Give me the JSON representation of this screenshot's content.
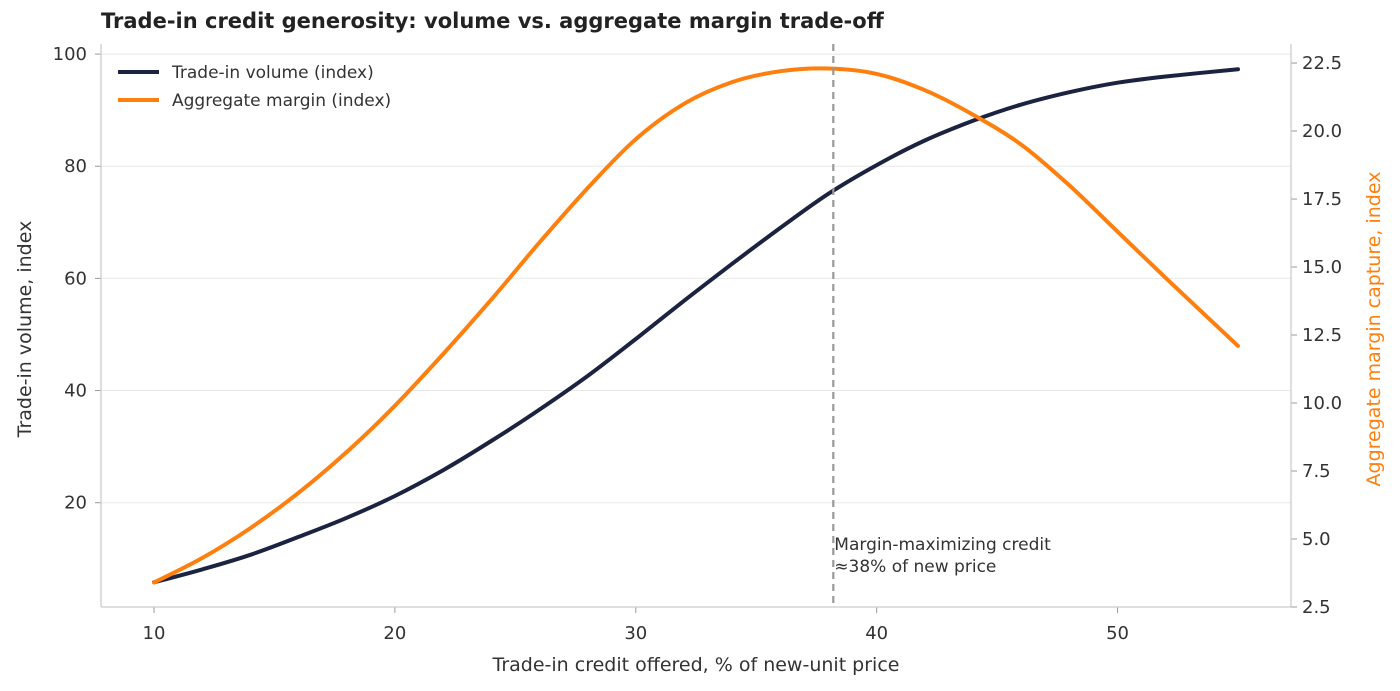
{
  "chart_data": {
    "type": "line",
    "title": "Trade-in credit generosity: volume vs. aggregate margin trade-off",
    "xlabel": "Trade-in credit offered, % of new-unit price",
    "ylabel": "Trade-in volume, index",
    "y2label": "Aggregate margin capture, index",
    "xlim": [
      7.8,
      57.2
    ],
    "ylim": [
      1.4,
      101.8
    ],
    "y2lim": [
      2.5,
      23.2
    ],
    "x_ticks": [
      10,
      20,
      30,
      40,
      50
    ],
    "y_ticks": [
      20,
      40,
      60,
      80,
      100
    ],
    "y2_ticks": [
      "2.5",
      "5.0",
      "7.5",
      "10.0",
      "12.5",
      "15.0",
      "17.5",
      "20.0",
      "22.5"
    ],
    "grid": "horizontal",
    "legend_position": "top-left",
    "series": [
      {
        "name": "Trade-in volume (index)",
        "axis": "left",
        "color": "#1b2341",
        "x": [
          10,
          12,
          14,
          16,
          18,
          20,
          22,
          24,
          26,
          28,
          30,
          32,
          34,
          36,
          38,
          40,
          42,
          44,
          46,
          48,
          50,
          52,
          55
        ],
        "values": [
          5.8,
          8.1,
          10.7,
          13.9,
          17.3,
          21.2,
          25.8,
          31.0,
          36.6,
          42.6,
          49.2,
          56.0,
          62.6,
          69.0,
          75.1,
          80.2,
          84.6,
          88.1,
          91.0,
          93.2,
          94.9,
          96.0,
          97.3
        ]
      },
      {
        "name": "Aggregate margin (index)",
        "axis": "right",
        "color": "#ff7f0e",
        "x": [
          10,
          12,
          14,
          16,
          18,
          20,
          22,
          24,
          26,
          28,
          30,
          32,
          34,
          36,
          38,
          40,
          42,
          44,
          46,
          48,
          50,
          52,
          55
        ],
        "values": [
          3.4,
          4.3,
          5.4,
          6.7,
          8.2,
          9.9,
          11.8,
          13.8,
          15.9,
          17.9,
          19.7,
          21.0,
          21.8,
          22.2,
          22.3,
          22.1,
          21.5,
          20.6,
          19.5,
          18.0,
          16.3,
          14.6,
          12.1
        ]
      }
    ],
    "annotations": [
      {
        "type": "vline",
        "x": 38.2,
        "style": "dashed",
        "color": "#999999"
      },
      {
        "type": "text",
        "x": 38.2,
        "lines": [
          "Margin-maximizing credit",
          "≈38% of new price"
        ]
      }
    ]
  },
  "colors": {
    "volume": "#1b2341",
    "margin": "#ff7f0e",
    "axis": "#cccccc",
    "grid": "#e8e8e8",
    "text": "#333333"
  }
}
